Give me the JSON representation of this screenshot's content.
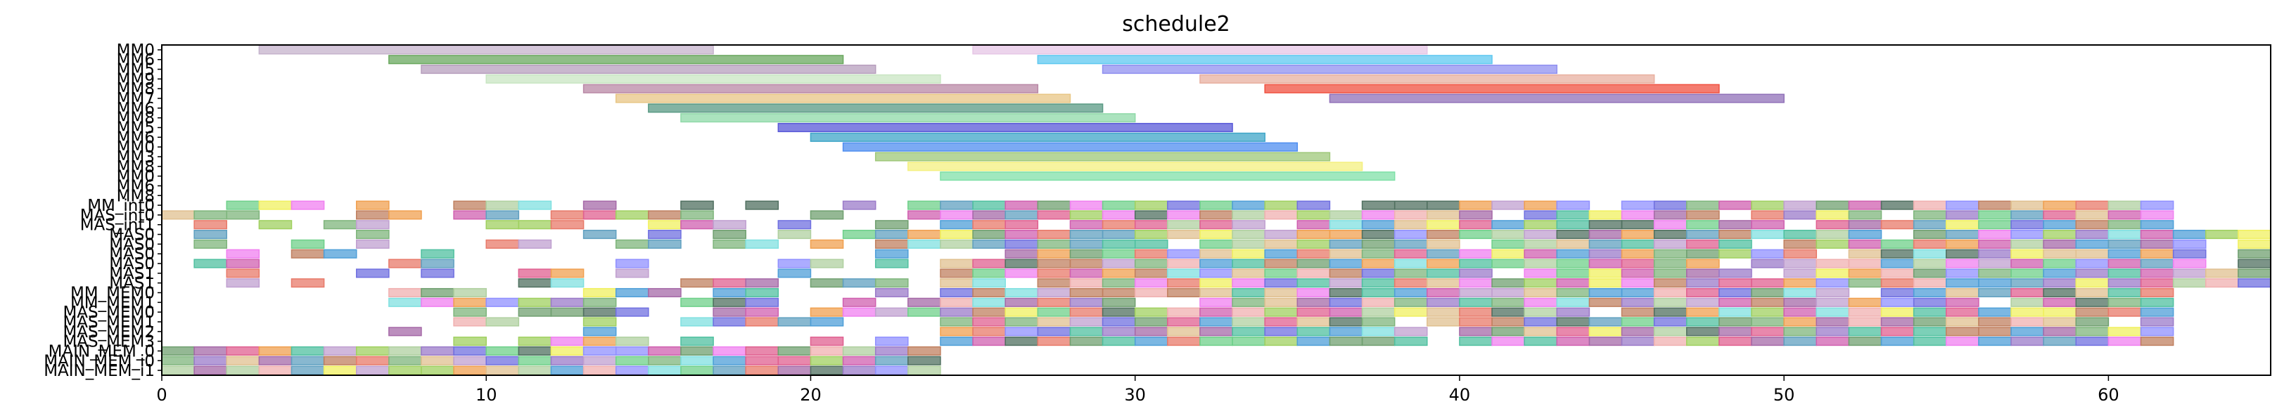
{
  "chart_data": {
    "type": "gantt",
    "title": "schedule2",
    "xlabel": "",
    "ylabel": "",
    "xlim": [
      0,
      65
    ],
    "xticks": [
      0,
      10,
      20,
      30,
      40,
      50,
      60
    ],
    "grid": false,
    "rows": [
      "MM0",
      "MM6",
      "MM5",
      "MM9",
      "MM8",
      "MM7",
      "MM6",
      "MM8",
      "MM5",
      "MM6",
      "MM0",
      "MM3",
      "MM8",
      "MM0",
      "MM6",
      "MM8",
      "MM_int0",
      "MAS_int0",
      "MAS_int1",
      "MAS0",
      "MAS0",
      "MAS0",
      "MAS0",
      "MAS1",
      "MAS1",
      "MM_MEM0",
      "MM_MEM1",
      "MAS_MEM0",
      "MAS_MEM1",
      "MAS_MEM2",
      "MAS_MEM3",
      "MAIN_MEM_0",
      "MAIN_MEM_i0",
      "MAIN_MEM_i1"
    ],
    "row_colors": [
      "#c5b3cc",
      "#7fb57c",
      "#b79fbd",
      "#c9e6c3",
      "#b988a6",
      "#e8c685",
      "#6a9a88",
      "#8fd9a8",
      "#8080ff",
      "#4f9fd8",
      "#9fb87a",
      "#fff07a",
      "#80e0a8",
      "#a0d0d0",
      "#c0c0c0",
      "#e0e0e0",
      "#a060a0",
      "#a0c0e0",
      "#90d060",
      "#a0e0e0",
      "#90a070",
      "#d0a0c0",
      "#6090a0",
      "#f0a0c0",
      "#70f070",
      "#d08040",
      "#f0d090",
      "#9060f0",
      "#c06090",
      "#70c070",
      "#5070e0",
      "#c0d0f0",
      "#d06080",
      "#4080ff"
    ],
    "palette": [
      "#7fb57c",
      "#a66aa8",
      "#4f9fd8",
      "#e87a6a",
      "#9b7bc9",
      "#6fd08a",
      "#f0a050",
      "#60a0c0",
      "#d060b0",
      "#a0d060",
      "#507060",
      "#c08060",
      "#f0f060",
      "#80e0e0",
      "#e06090",
      "#7070e0",
      "#b0d0a0",
      "#c0a0d0",
      "#50c0a0",
      "#e0c090",
      "#9090ff",
      "#f080f0",
      "#70a070",
      "#f0b0b0"
    ],
    "series": [
      {
        "row": 0,
        "segments": [
          [
            3,
            17
          ],
          [
            25,
            39
          ]
        ],
        "colors": [
          "#c5b3cc",
          "#e6c6e6"
        ]
      },
      {
        "row": 1,
        "segments": [
          [
            7,
            21
          ],
          [
            27,
            41
          ]
        ],
        "colors": [
          "#6aa85f",
          "#5fc8f0"
        ]
      },
      {
        "row": 2,
        "segments": [
          [
            8,
            22
          ],
          [
            29,
            43
          ]
        ],
        "colors": [
          "#b79fbd",
          "#9090f0"
        ]
      },
      {
        "row": 3,
        "segments": [
          [
            10,
            24
          ],
          [
            32,
            46
          ]
        ],
        "colors": [
          "#c9e6c3",
          "#e8b0a0"
        ]
      },
      {
        "row": 4,
        "segments": [
          [
            13,
            27
          ],
          [
            34,
            48
          ]
        ],
        "colors": [
          "#b988a6",
          "#f05040"
        ]
      },
      {
        "row": 5,
        "segments": [
          [
            14,
            28
          ],
          [
            36,
            50
          ]
        ],
        "colors": [
          "#e8c685",
          "#9070b8"
        ]
      },
      {
        "row": 6,
        "segments": [
          [
            15,
            29
          ]
        ],
        "colors": [
          "#5a9a84"
        ]
      },
      {
        "row": 7,
        "segments": [
          [
            16,
            30
          ]
        ],
        "colors": [
          "#8fd9a8"
        ]
      },
      {
        "row": 8,
        "segments": [
          [
            19,
            33
          ]
        ],
        "colors": [
          "#5a5ad8"
        ]
      },
      {
        "row": 9,
        "segments": [
          [
            20,
            34
          ]
        ],
        "colors": [
          "#3fa6c8"
        ]
      },
      {
        "row": 10,
        "segments": [
          [
            21,
            35
          ]
        ],
        "colors": [
          "#4f8ef0"
        ]
      },
      {
        "row": 11,
        "segments": [
          [
            22,
            36
          ]
        ],
        "colors": [
          "#9fc87a"
        ]
      },
      {
        "row": 12,
        "segments": [
          [
            23,
            37
          ]
        ],
        "colors": [
          "#f4f080"
        ]
      },
      {
        "row": 13,
        "segments": [
          [
            24,
            38
          ]
        ],
        "colors": [
          "#80e0a8"
        ]
      }
    ]
  }
}
